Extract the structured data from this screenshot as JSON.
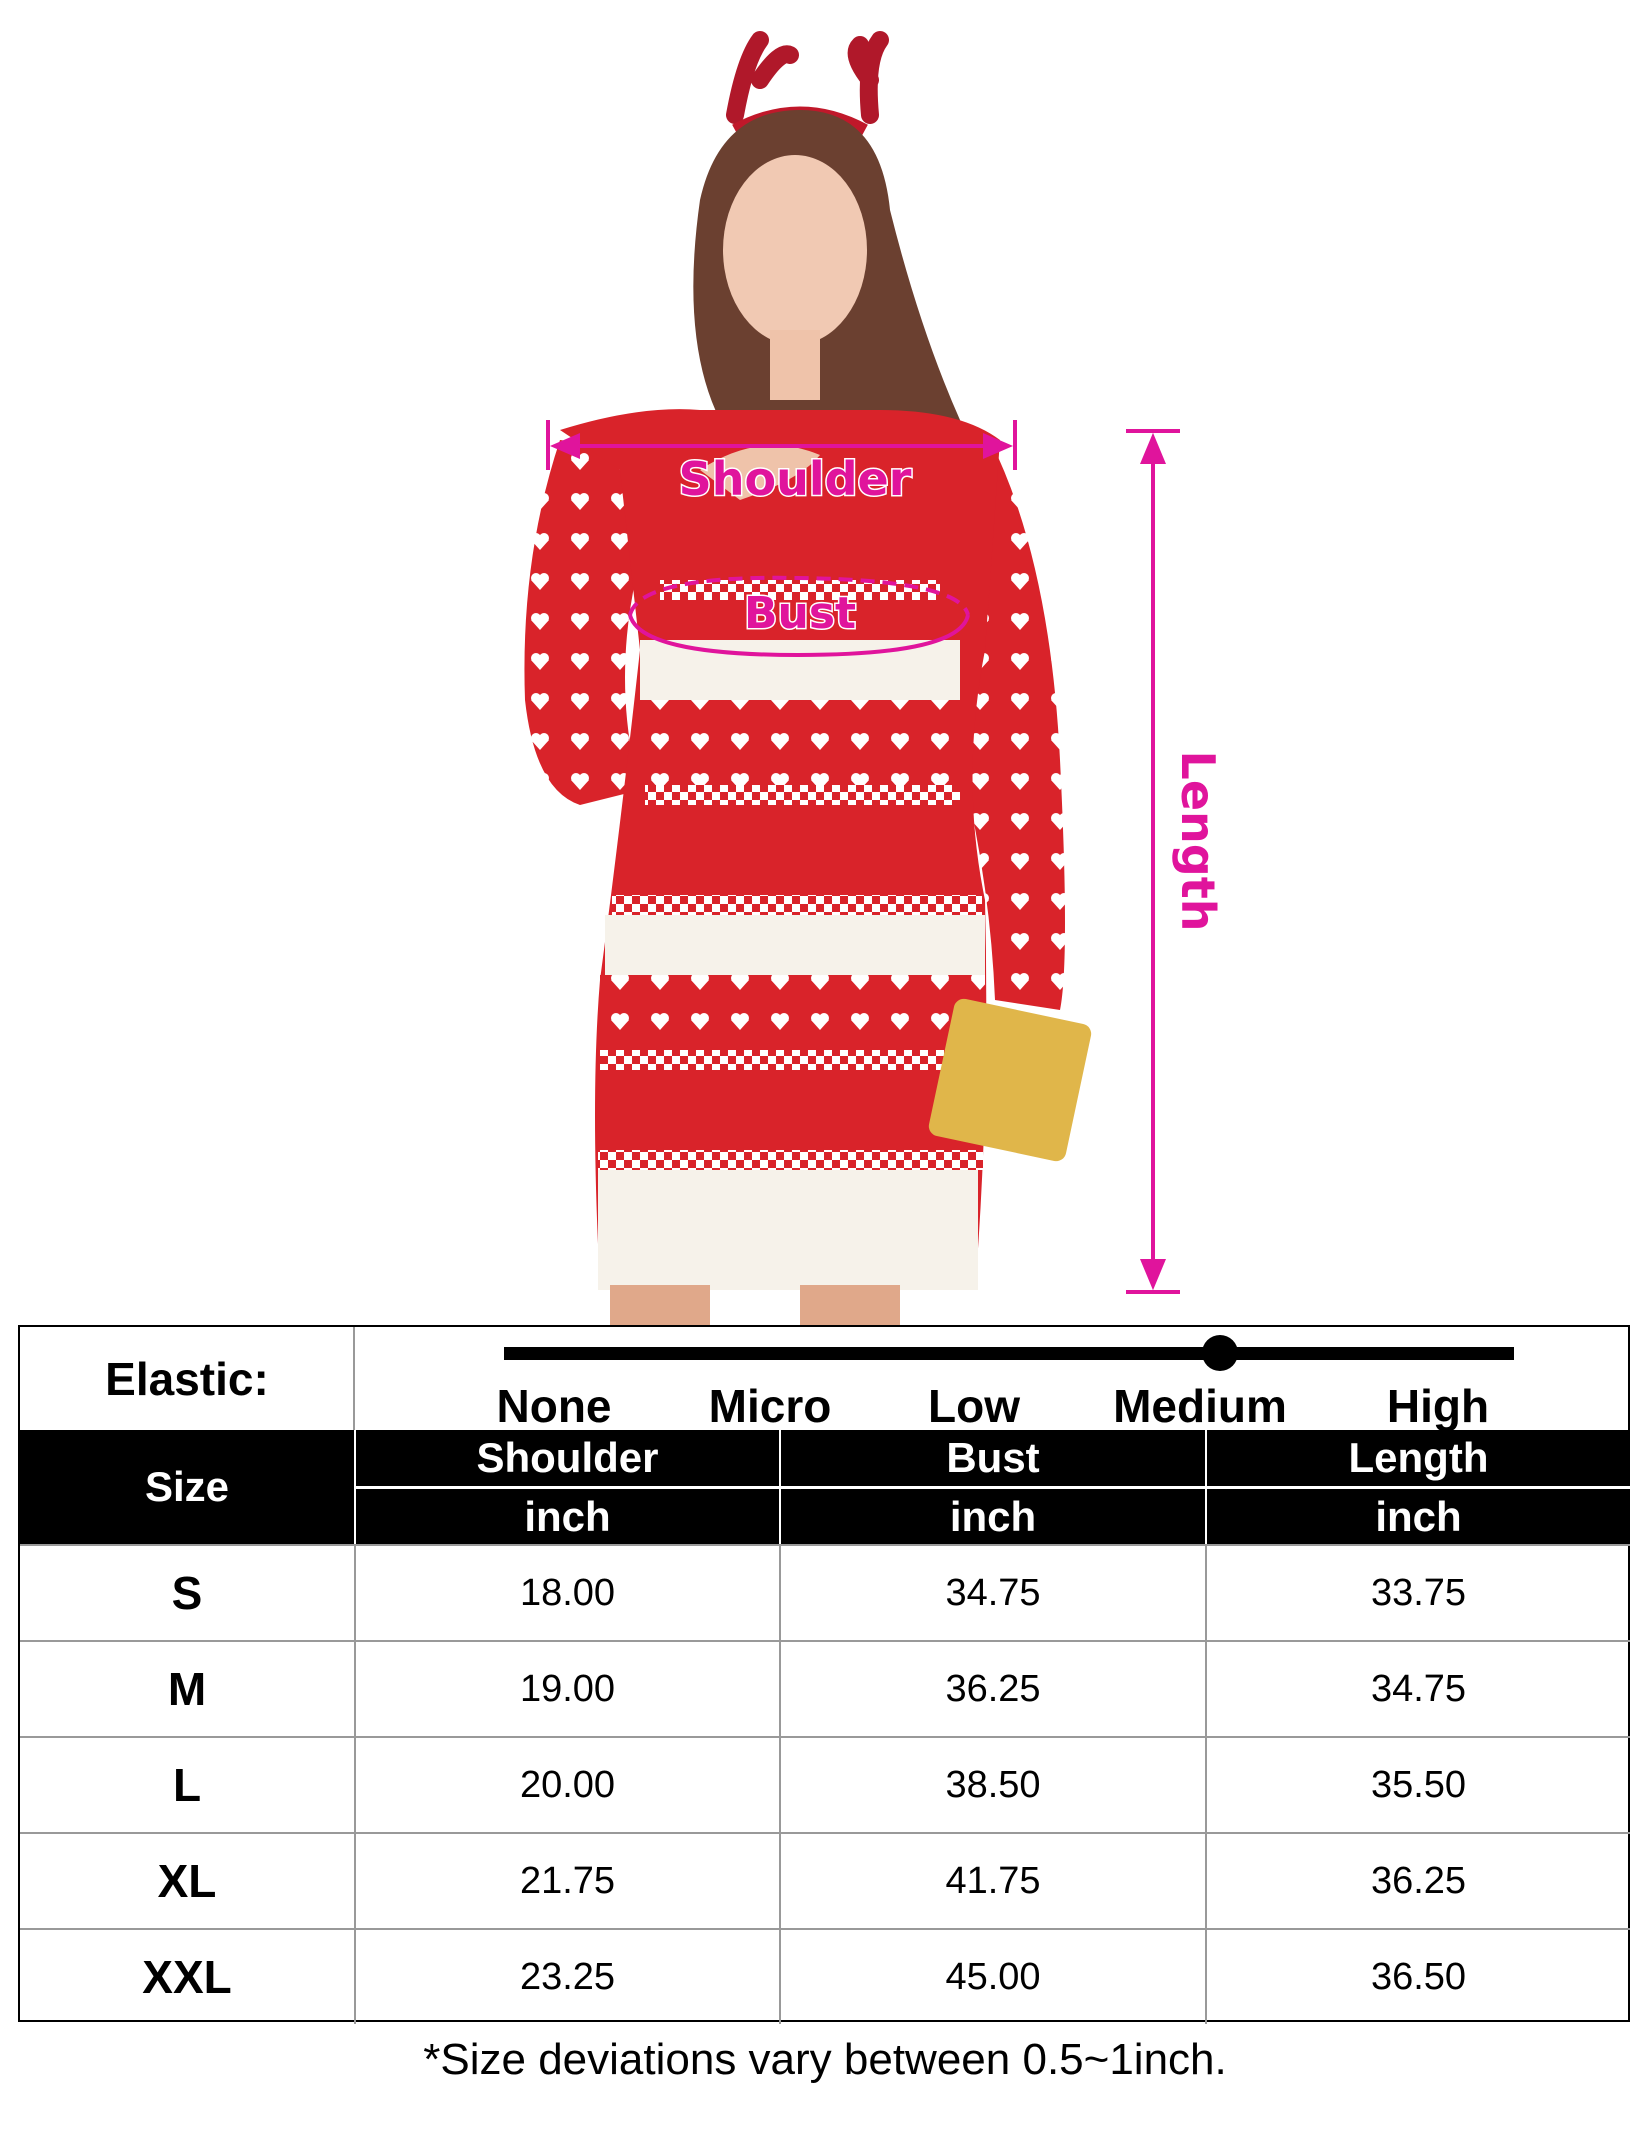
{
  "image": {
    "labels": {
      "shoulder": "Shoulder",
      "bust": "Bust",
      "length": "Length"
    },
    "colors": {
      "measure": "#e0149c",
      "dress_red": "#d9232a",
      "dress_white": "#f6f2ea"
    }
  },
  "elastic": {
    "label": "Elastic:",
    "options": [
      "None",
      "Micro",
      "Low",
      "Medium",
      "High"
    ],
    "selected": "Medium"
  },
  "table": {
    "size_header": "Size",
    "columns": [
      {
        "name": "Shoulder",
        "unit": "inch"
      },
      {
        "name": "Bust",
        "unit": "inch"
      },
      {
        "name": "Length",
        "unit": "inch"
      }
    ],
    "rows": [
      {
        "size": "S",
        "values": [
          "18.00",
          "34.75",
          "33.75"
        ]
      },
      {
        "size": "M",
        "values": [
          "19.00",
          "36.25",
          "34.75"
        ]
      },
      {
        "size": "L",
        "values": [
          "20.00",
          "38.50",
          "35.50"
        ]
      },
      {
        "size": "XL",
        "values": [
          "21.75",
          "41.75",
          "36.25"
        ]
      },
      {
        "size": "XXL",
        "values": [
          "23.25",
          "45.00",
          "36.50"
        ]
      }
    ]
  },
  "note": "*Size deviations vary between 0.5~1inch."
}
